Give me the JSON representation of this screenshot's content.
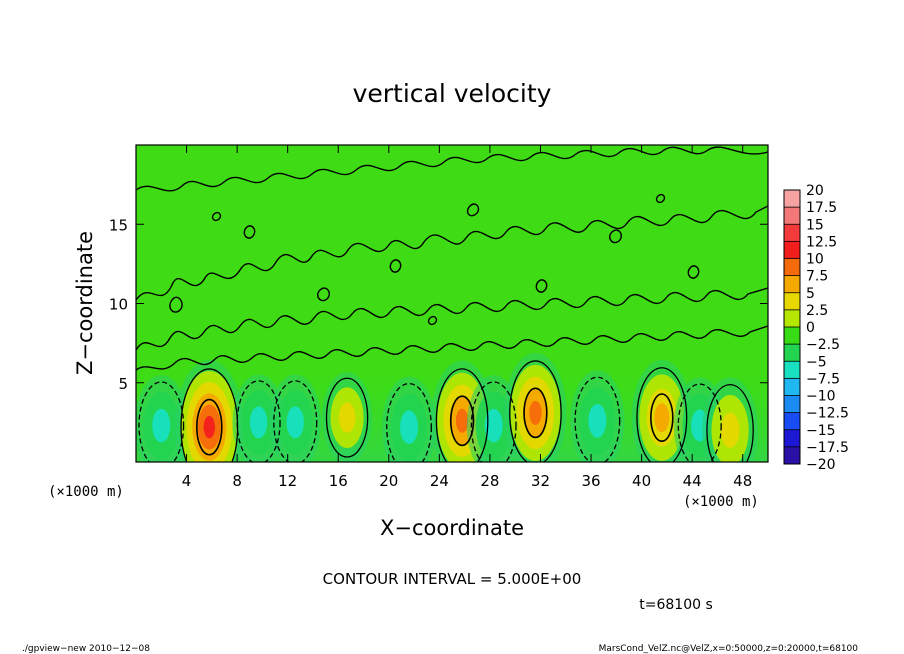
{
  "chart_data": {
    "type": "contour",
    "title": "vertical velocity",
    "xlabel": "X−coordinate",
    "ylabel": "Z−coordinate",
    "x_unit": "(×1000 m)",
    "z_unit": "(×1000 m)",
    "xlim": [
      0,
      50
    ],
    "ylim": [
      0,
      20
    ],
    "x_ticks": [
      "4",
      "8",
      "12",
      "16",
      "20",
      "24",
      "28",
      "32",
      "36",
      "40",
      "44",
      "48"
    ],
    "y_ticks": [
      "5",
      "10",
      "15"
    ],
    "contour_interval_label": "CONTOUR INTERVAL = 5.000E+00",
    "time_label": "t=68100 s",
    "colorbar": {
      "levels": [
        "20",
        "17.5",
        "15",
        "12.5",
        "10",
        "7.5",
        "5",
        "2.5",
        "0",
        "−2.5",
        "−5",
        "−7.5",
        "−10",
        "−12.5",
        "−15",
        "−17.5",
        "−20"
      ],
      "colors": [
        "#f7a3a3",
        "#f57878",
        "#f43b3b",
        "#f21e1e",
        "#f56a0a",
        "#f5a800",
        "#e6d800",
        "#b5e600",
        "#38dc14",
        "#23d450",
        "#18e0c0",
        "#20b8f0",
        "#1c8cf4",
        "#1a4cf4",
        "#1c18d4",
        "#2a10a4",
        "#6a0aa8"
      ]
    },
    "cells": [
      {
        "x": 2,
        "z": 2.3,
        "value": -5,
        "dashed": true
      },
      {
        "x": 5.8,
        "z": 2.2,
        "value": 12,
        "dashed": false
      },
      {
        "x": 9.7,
        "z": 2.5,
        "value": -4,
        "dashed": true
      },
      {
        "x": 12.6,
        "z": 2.5,
        "value": -4,
        "dashed": true
      },
      {
        "x": 16.7,
        "z": 2.8,
        "value": 3,
        "dashed": false
      },
      {
        "x": 21.6,
        "z": 2.2,
        "value": -5,
        "dashed": true
      },
      {
        "x": 25.8,
        "z": 2.6,
        "value": 9,
        "dashed": false
      },
      {
        "x": 28.3,
        "z": 2.3,
        "value": -5,
        "dashed": true
      },
      {
        "x": 31.6,
        "z": 3.1,
        "value": 9,
        "dashed": false
      },
      {
        "x": 36.5,
        "z": 2.6,
        "value": -5,
        "dashed": true
      },
      {
        "x": 41.6,
        "z": 2.8,
        "value": 8,
        "dashed": false
      },
      {
        "x": 44.6,
        "z": 2.3,
        "value": -4,
        "dashed": true
      },
      {
        "x": 47,
        "z": 2.0,
        "value": 6,
        "dashed": false
      }
    ]
  },
  "footer": {
    "left": "./gpview−new   2010−12−08",
    "right": "MarsCond_VelZ.nc@VelZ,x=0:50000,z=0:20000,t=68100"
  }
}
